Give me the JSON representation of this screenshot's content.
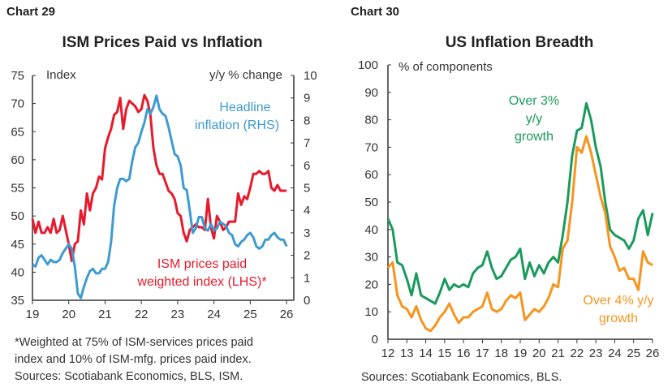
{
  "charts_meta": {
    "left": {
      "label": "Chart 29",
      "title": "ISM Prices Paid vs Inflation",
      "notes": [
        "*Weighted at 75% of ISM-services prices paid",
        "index and 10% of ISM-mfg. prices paid index.",
        "Sources: Scotiabank Economics, BLS, ISM."
      ]
    },
    "right": {
      "label": "Chart 30",
      "title": "US Inflation Breadth",
      "notes": [
        "Sources: Scotiabank Economics, BLS."
      ]
    }
  },
  "chart_data": [
    {
      "type": "line",
      "title": "ISM Prices Paid vs Inflation",
      "ylabel_left": "Index",
      "ylabel_right": "y/y % change",
      "ylim_left": [
        35,
        75
      ],
      "yticks_left": [
        35,
        40,
        45,
        50,
        55,
        60,
        65,
        70,
        75
      ],
      "ylim_right": [
        0,
        10
      ],
      "yticks_right": [
        0,
        1,
        2,
        3,
        4,
        5,
        6,
        7,
        8,
        9,
        10
      ],
      "xlim": [
        "2019-01",
        "2026-03"
      ],
      "xticks": [
        "19",
        "20",
        "21",
        "22",
        "23",
        "24",
        "25",
        "26"
      ],
      "grid": false,
      "series": [
        {
          "name": "ISM prices paid weighted index (LHS)*",
          "axis": "left",
          "color": "#e8192c",
          "start": "2019-01",
          "values": [
            49.5,
            47,
            49,
            47,
            47,
            48,
            47,
            49.5,
            47,
            47.5,
            50,
            47.5,
            45,
            42,
            45,
            45.5,
            51,
            48.5,
            54,
            51,
            54,
            55,
            57,
            56.5,
            62,
            64,
            65.5,
            68,
            68.5,
            71,
            65.5,
            69,
            70.5,
            70,
            69.5,
            68.5,
            69,
            71.5,
            70.5,
            68,
            62,
            59,
            57.5,
            57.5,
            56,
            54.5,
            54,
            53,
            50.5,
            50,
            47,
            45.5,
            47.5,
            48,
            48.5,
            48,
            48,
            47.5,
            53,
            48,
            46,
            50,
            49,
            47.5,
            48,
            49,
            49,
            49,
            54,
            52,
            53.5,
            53,
            55,
            57.5,
            57.5,
            58,
            57.5,
            57.5,
            58,
            55,
            54.5,
            55.5,
            54.5,
            54.5,
            54.5
          ]
        },
        {
          "name": "Headline inflation (RHS)",
          "axis": "right",
          "color": "#3d9bd1",
          "start": "2019-01",
          "values": [
            1.6,
            1.5,
            1.9,
            2.0,
            1.8,
            1.6,
            1.8,
            1.7,
            1.7,
            1.8,
            2.1,
            2.3,
            2.5,
            2.3,
            1.5,
            0.3,
            0.1,
            0.6,
            1.0,
            1.3,
            1.4,
            1.2,
            1.2,
            1.4,
            1.4,
            1.7,
            2.6,
            4.2,
            5.0,
            5.4,
            5.4,
            5.3,
            5.4,
            6.2,
            6.8,
            7.0,
            7.5,
            7.9,
            8.5,
            8.3,
            8.6,
            9.1,
            8.5,
            8.3,
            8.2,
            7.7,
            7.1,
            6.5,
            6.4,
            6.0,
            5.0,
            4.9,
            4.0,
            3.0,
            3.2,
            3.7,
            3.7,
            3.2,
            3.1,
            3.4,
            3.1,
            3.2,
            3.5,
            3.4,
            3.3,
            3.0,
            2.9,
            2.5,
            2.4,
            2.6,
            2.7,
            2.9,
            3.0,
            2.8,
            2.4,
            2.3,
            2.4,
            2.7,
            2.7,
            2.9,
            3.0,
            2.8,
            2.7,
            2.7,
            2.4
          ]
        }
      ],
      "annotations": [
        "Headline inflation (RHS)",
        "ISM prices paid weighted index (LHS)*"
      ]
    },
    {
      "type": "line",
      "title": "US Inflation Breadth",
      "ylabel": "% of components",
      "ylim": [
        0,
        100
      ],
      "yticks": [
        0,
        10,
        20,
        30,
        40,
        50,
        60,
        70,
        80,
        90,
        100
      ],
      "xlim": [
        "2012-Q1",
        "2026-Q1"
      ],
      "xticks": [
        "12",
        "13",
        "14",
        "15",
        "16",
        "17",
        "18",
        "19",
        "20",
        "21",
        "22",
        "23",
        "24",
        "25",
        "26"
      ],
      "grid": false,
      "series": [
        {
          "name": "Over 3% y/y growth",
          "color": "#1a9a5c",
          "start": "2012-Q1",
          "values": [
            44,
            40,
            28,
            27,
            22,
            16,
            24,
            16,
            15,
            14,
            13,
            17,
            22,
            18,
            20,
            19,
            20,
            19,
            24,
            26,
            27,
            32,
            26,
            22,
            23,
            26,
            29,
            30,
            33,
            22,
            28,
            23,
            27,
            24,
            28,
            30,
            28,
            38,
            50,
            67,
            76,
            77,
            86,
            80,
            70,
            63,
            50,
            40,
            38,
            37,
            36,
            33,
            36,
            44,
            47,
            38,
            46
          ]
        },
        {
          "name": "Over 4% y/y growth",
          "color": "#f7941d",
          "start": "2012-Q1",
          "values": [
            26,
            28,
            16,
            12,
            11,
            8,
            12,
            7,
            4,
            3,
            5,
            8,
            10,
            13,
            9,
            6,
            8,
            8,
            10,
            11,
            12,
            17,
            11,
            10,
            11,
            14,
            16,
            15,
            17,
            7,
            9,
            11,
            10,
            12,
            15,
            20,
            19,
            33,
            36,
            50,
            70,
            68,
            74,
            68,
            60,
            52,
            46,
            34,
            30,
            25,
            26,
            22,
            22,
            18,
            32,
            28,
            27
          ]
        }
      ],
      "annotations": [
        "Over 3%",
        "y/y",
        "growth",
        "Over 4% y/y",
        "growth"
      ]
    }
  ]
}
